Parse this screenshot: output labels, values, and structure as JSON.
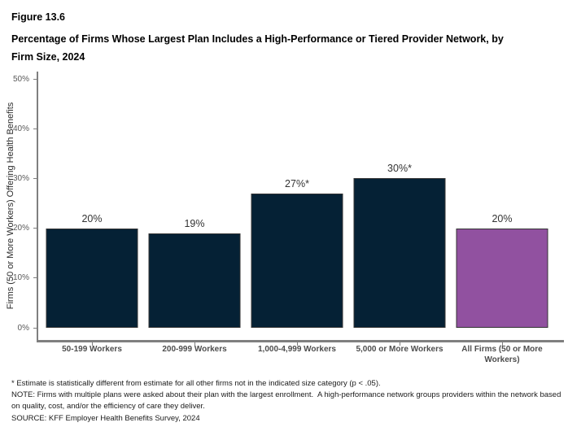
{
  "figure": {
    "number": "Figure 13.6",
    "title": "Percentage of Firms Whose Largest Plan Includes a High-Performance or Tiered Provider Network, by Firm Size, 2024"
  },
  "chart_data": {
    "type": "bar",
    "title": "Percentage of Firms Whose Largest Plan Includes a High-Performance or Tiered Provider Network, by Firm Size, 2024",
    "categories": [
      "50-199 Workers",
      "200-999 Workers",
      "1,000-4,999 Workers",
      "5,000 or More Workers",
      "All Firms (50 or More Workers)"
    ],
    "values": [
      20,
      19,
      27,
      30,
      20
    ],
    "value_labels": [
      "20%",
      "19%",
      "27%*",
      "30%*",
      "20%"
    ],
    "bar_colors": [
      "#052135",
      "#052135",
      "#052135",
      "#052135",
      "#9151A0"
    ],
    "bar_border_color": "#333333",
    "xlabel": "",
    "ylabel": "Firms (50 or More Workers) Offering Health Benefits",
    "ylim": [
      0,
      50
    ],
    "ytick_values": [
      0,
      10,
      20,
      30,
      40,
      50
    ],
    "ytick_labels": [
      "0%",
      "10%",
      "20%",
      "30%",
      "40%",
      "50%"
    ],
    "grid": false,
    "legend": "none",
    "accent_navy": "#052135",
    "accent_purple": "#9151A0",
    "axis_color": "#7f7f7f"
  },
  "footnotes": {
    "asterisk": "* Estimate is statistically different from estimate for all other firms not in the indicated size category (p < .05).",
    "note": "NOTE: Firms with multiple plans were asked about their plan with the largest enrollment.  A high-performance network groups providers within the network based on quality, cost, and/or the efficiency of care they deliver.",
    "source": "SOURCE: KFF Employer Health Benefits Survey, 2024"
  }
}
